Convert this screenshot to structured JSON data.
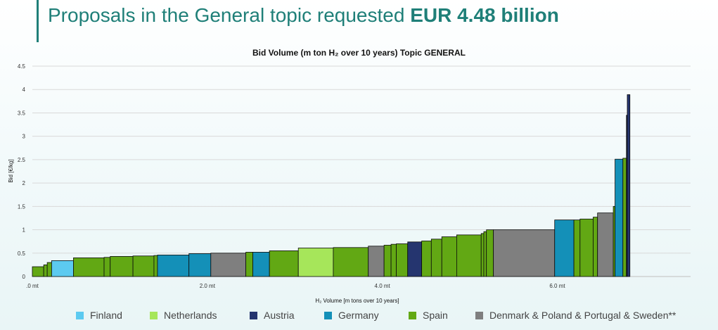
{
  "header": {
    "title_prefix": "Proposals in the General topic requested ",
    "title_bold": "EUR 4.48 billion"
  },
  "chart_data": {
    "type": "bar",
    "title": "Bid Volume (m ton H₂ over 10 years) Topic GENERAL",
    "xlabel": "H₂ Volume [m tons over 10 years]",
    "ylabel": "Bid [€/kg]",
    "xlim": [
      0,
      6.8
    ],
    "ylim": [
      0,
      4.5
    ],
    "x_ticks": [
      ".0 mt",
      "2.0 mt",
      "4.0 mt",
      "6.0 mt"
    ],
    "x_tick_values": [
      0,
      2,
      4,
      6
    ],
    "y_ticks": [
      "0",
      "0.5",
      "1",
      "1.5",
      "2",
      "2.5",
      "3",
      "3.5",
      "4",
      "4.5"
    ],
    "y_tick_values": [
      0,
      0.5,
      1,
      1.5,
      2,
      2.5,
      3,
      3.5,
      4,
      4.5
    ],
    "grid": true,
    "legend_position": "bottom",
    "series": [
      {
        "name": "Finland",
        "color": "#5ccaf0"
      },
      {
        "name": "Netherlands",
        "color": "#a6e65a"
      },
      {
        "name": "Austria",
        "color": "#25356f"
      },
      {
        "name": "Germany",
        "color": "#1490b8"
      },
      {
        "name": "Spain",
        "color": "#62a814"
      },
      {
        "name": "Denmark & Poland & Portugal & Sweden**",
        "color": "#7f7f7f"
      }
    ],
    "bars": [
      {
        "x0": 0.0,
        "x1": 0.13,
        "value": 0.21,
        "series": "Spain"
      },
      {
        "x0": 0.13,
        "x1": 0.17,
        "value": 0.25,
        "series": "Spain"
      },
      {
        "x0": 0.17,
        "x1": 0.22,
        "value": 0.3,
        "series": "Spain"
      },
      {
        "x0": 0.22,
        "x1": 0.47,
        "value": 0.34,
        "series": "Finland"
      },
      {
        "x0": 0.47,
        "x1": 0.82,
        "value": 0.4,
        "series": "Spain"
      },
      {
        "x0": 0.82,
        "x1": 0.89,
        "value": 0.41,
        "series": "Spain"
      },
      {
        "x0": 0.89,
        "x1": 1.15,
        "value": 0.43,
        "series": "Spain"
      },
      {
        "x0": 1.15,
        "x1": 1.39,
        "value": 0.44,
        "series": "Spain"
      },
      {
        "x0": 1.39,
        "x1": 1.43,
        "value": 0.45,
        "series": "Spain"
      },
      {
        "x0": 1.43,
        "x1": 1.79,
        "value": 0.46,
        "series": "Germany"
      },
      {
        "x0": 1.79,
        "x1": 2.04,
        "value": 0.49,
        "series": "Germany"
      },
      {
        "x0": 2.04,
        "x1": 2.44,
        "value": 0.5,
        "series": "Denmark & Poland & Portugal & Sweden**"
      },
      {
        "x0": 2.44,
        "x1": 2.52,
        "value": 0.52,
        "series": "Spain"
      },
      {
        "x0": 2.52,
        "x1": 2.71,
        "value": 0.52,
        "series": "Germany"
      },
      {
        "x0": 2.71,
        "x1": 3.04,
        "value": 0.55,
        "series": "Spain"
      },
      {
        "x0": 3.04,
        "x1": 3.44,
        "value": 0.61,
        "series": "Netherlands"
      },
      {
        "x0": 3.44,
        "x1": 3.84,
        "value": 0.62,
        "series": "Spain"
      },
      {
        "x0": 3.84,
        "x1": 4.02,
        "value": 0.65,
        "series": "Denmark & Poland & Portugal & Sweden**"
      },
      {
        "x0": 4.02,
        "x1": 4.1,
        "value": 0.67,
        "series": "Spain"
      },
      {
        "x0": 4.1,
        "x1": 4.16,
        "value": 0.69,
        "series": "Spain"
      },
      {
        "x0": 4.16,
        "x1": 4.29,
        "value": 0.7,
        "series": "Spain"
      },
      {
        "x0": 4.29,
        "x1": 4.45,
        "value": 0.74,
        "series": "Austria"
      },
      {
        "x0": 4.45,
        "x1": 4.56,
        "value": 0.76,
        "series": "Spain"
      },
      {
        "x0": 4.56,
        "x1": 4.68,
        "value": 0.8,
        "series": "Spain"
      },
      {
        "x0": 4.68,
        "x1": 4.85,
        "value": 0.85,
        "series": "Spain"
      },
      {
        "x0": 4.85,
        "x1": 5.13,
        "value": 0.89,
        "series": "Spain"
      },
      {
        "x0": 5.13,
        "x1": 5.16,
        "value": 0.92,
        "series": "Spain"
      },
      {
        "x0": 5.16,
        "x1": 5.19,
        "value": 0.96,
        "series": "Spain"
      },
      {
        "x0": 5.19,
        "x1": 5.27,
        "value": 1.0,
        "series": "Spain"
      },
      {
        "x0": 5.27,
        "x1": 5.97,
        "value": 1.0,
        "series": "Denmark & Poland & Portugal & Sweden**"
      },
      {
        "x0": 5.97,
        "x1": 6.19,
        "value": 1.21,
        "series": "Germany"
      },
      {
        "x0": 6.19,
        "x1": 6.26,
        "value": 1.21,
        "series": "Spain"
      },
      {
        "x0": 6.26,
        "x1": 6.41,
        "value": 1.23,
        "series": "Spain"
      },
      {
        "x0": 6.41,
        "x1": 6.46,
        "value": 1.27,
        "series": "Spain"
      },
      {
        "x0": 6.46,
        "x1": 6.64,
        "value": 1.36,
        "series": "Denmark & Poland & Portugal & Sweden**"
      },
      {
        "x0": 6.64,
        "x1": 6.66,
        "value": 1.5,
        "series": "Spain"
      },
      {
        "x0": 6.66,
        "x1": 6.75,
        "value": 2.51,
        "series": "Germany"
      },
      {
        "x0": 6.75,
        "x1": 6.79,
        "value": 2.53,
        "series": "Spain"
      },
      {
        "x0": 6.79,
        "x1": 6.8,
        "value": 3.45,
        "series": "Austria"
      },
      {
        "x0": 6.8,
        "x1": 6.83,
        "value": 3.89,
        "series": "Austria"
      }
    ]
  }
}
